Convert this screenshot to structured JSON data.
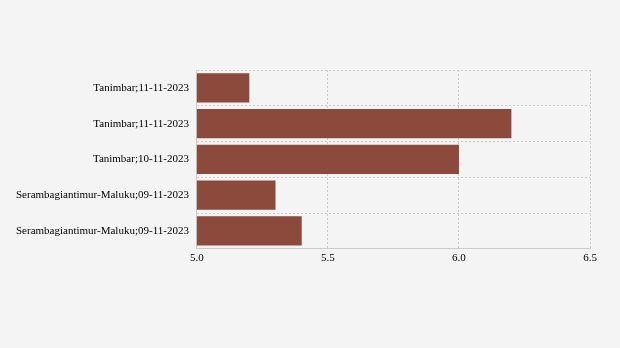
{
  "chart_data": {
    "type": "bar",
    "orientation": "horizontal",
    "categories": [
      "Tanimbar;11-11-2023",
      "Tanimbar;11-11-2023",
      "Tanimbar;10-11-2023",
      "Serambagiantimur-Maluku;09-11-2023",
      "Serambagiantimur-Maluku;09-11-2023"
    ],
    "values": [
      5.2,
      6.2,
      6.0,
      5.3,
      5.4
    ],
    "color": "#8b4a3c",
    "xlim": [
      5,
      6.5
    ],
    "xticks": [
      {
        "value": 5,
        "label": "5.0"
      },
      5.5,
      {
        "value": 6,
        "label": "6.0"
      },
      6.5
    ],
    "grid": true
  }
}
